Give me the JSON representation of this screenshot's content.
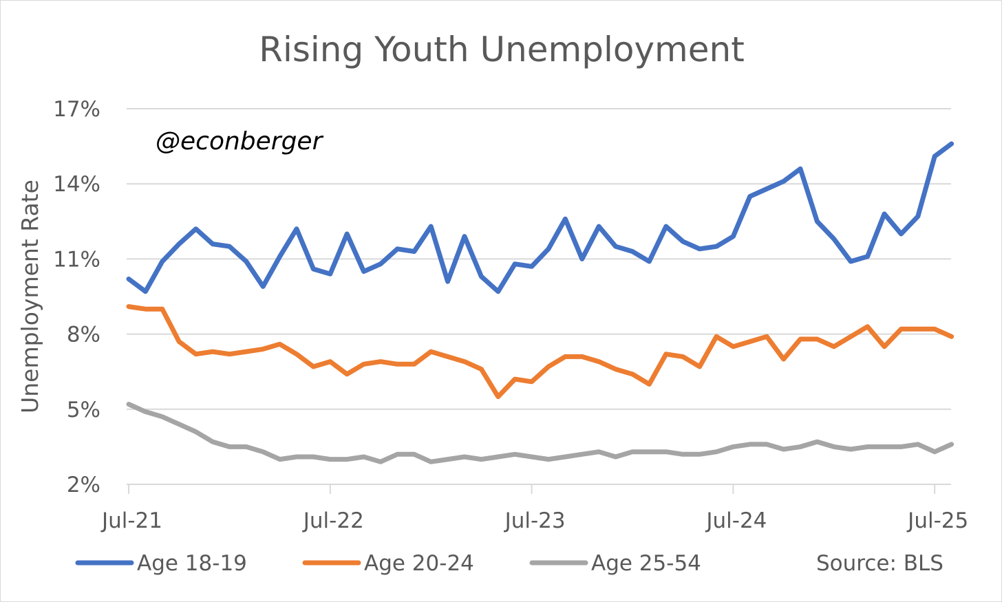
{
  "chart_data": {
    "type": "line",
    "title": "Rising Youth Unemployment",
    "watermark": "@econberger",
    "source": "Source: BLS",
    "ylabel": "Unemployment Rate",
    "xlabel": "",
    "ylim": [
      2,
      17
    ],
    "yticks": [
      {
        "value": 2,
        "label": "2%"
      },
      {
        "value": 5,
        "label": "5%"
      },
      {
        "value": 8,
        "label": "8%"
      },
      {
        "value": 11,
        "label": "11%"
      },
      {
        "value": 14,
        "label": "14%"
      },
      {
        "value": 17,
        "label": "17%"
      }
    ],
    "xticks": [
      {
        "index": 0,
        "label": "Jul-21"
      },
      {
        "index": 12,
        "label": "Jul-22"
      },
      {
        "index": 24,
        "label": "Jul-23"
      },
      {
        "index": 36,
        "label": "Jul-24"
      },
      {
        "index": 48,
        "label": "Jul-25"
      }
    ],
    "grid": true,
    "legend_position": "bottom",
    "series": [
      {
        "name": "Age 18-19",
        "color": "#4472C4",
        "values": [
          10.2,
          9.7,
          10.9,
          11.6,
          12.2,
          11.6,
          11.5,
          10.9,
          9.9,
          11.1,
          12.2,
          10.6,
          10.4,
          12.0,
          10.5,
          10.8,
          11.4,
          11.3,
          12.3,
          10.1,
          11.9,
          10.3,
          9.7,
          10.8,
          10.7,
          11.4,
          12.6,
          11.0,
          12.3,
          11.5,
          11.3,
          10.9,
          12.3,
          11.7,
          11.4,
          11.5,
          11.9,
          13.5,
          13.8,
          14.1,
          14.6,
          12.5,
          11.8,
          10.9,
          11.1,
          12.8,
          12.0,
          12.7,
          15.1,
          15.6
        ]
      },
      {
        "name": "Age 20-24",
        "color": "#ED7D31",
        "values": [
          9.1,
          9.0,
          9.0,
          7.7,
          7.2,
          7.3,
          7.2,
          7.3,
          7.4,
          7.6,
          7.2,
          6.7,
          6.9,
          6.4,
          6.8,
          6.9,
          6.8,
          6.8,
          7.3,
          7.1,
          6.9,
          6.6,
          5.5,
          6.2,
          6.1,
          6.7,
          7.1,
          7.1,
          6.9,
          6.6,
          6.4,
          6.0,
          7.2,
          7.1,
          6.7,
          7.9,
          7.5,
          7.7,
          7.9,
          7.0,
          7.8,
          7.8,
          7.5,
          7.9,
          8.3,
          7.5,
          8.2,
          8.2,
          8.2,
          7.9
        ]
      },
      {
        "name": "Age 25-54",
        "color": "#A5A5A5",
        "values": [
          5.2,
          4.9,
          4.7,
          4.4,
          4.1,
          3.7,
          3.5,
          3.5,
          3.3,
          3.0,
          3.1,
          3.1,
          3.0,
          3.0,
          3.1,
          2.9,
          3.2,
          3.2,
          2.9,
          3.0,
          3.1,
          3.0,
          3.1,
          3.2,
          3.1,
          3.0,
          3.1,
          3.2,
          3.3,
          3.1,
          3.3,
          3.3,
          3.3,
          3.2,
          3.2,
          3.3,
          3.5,
          3.6,
          3.6,
          3.4,
          3.5,
          3.7,
          3.5,
          3.4,
          3.5,
          3.5,
          3.5,
          3.6,
          3.3,
          3.6
        ]
      }
    ]
  }
}
